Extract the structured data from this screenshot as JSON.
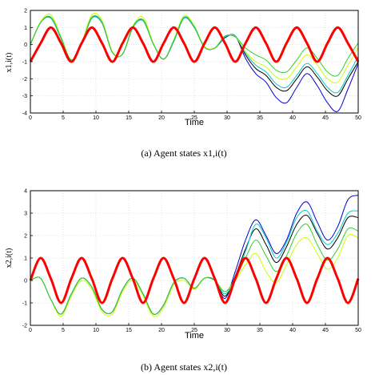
{
  "chart_data": [
    {
      "type": "line",
      "xlabel": "Time",
      "ylabel": "x1,i(t)",
      "xlim": [
        0,
        50
      ],
      "ylim": [
        -4,
        2
      ],
      "xticks": [
        "0",
        "5",
        "10",
        "15",
        "20",
        "25",
        "30",
        "35",
        "40",
        "45",
        "50"
      ],
      "yticks": [
        "-4",
        "-3",
        "-2",
        "-1",
        "0",
        "1",
        "2"
      ],
      "grid": true,
      "caption": "(a) Agent states x1,i(t)",
      "series": [
        {
          "color": "#ff0000",
          "role": "leader",
          "y": [
            -1.0,
            0.08,
            1.0,
            0.08,
            -1.0,
            0.08,
            1.0,
            0.08,
            -1.0,
            0.08,
            1.0,
            0.08,
            -1.0,
            0.08,
            1.0,
            0.08,
            -1.0,
            0.08,
            1.0,
            0.08,
            -1.0,
            0.08,
            1.0,
            0.08,
            -1.0,
            0.08,
            1.0,
            0.08,
            -1.0,
            0.08,
            1.0,
            0.08,
            -1.0
          ]
        },
        {
          "color": "#0000cc",
          "y": [
            0.0,
            1.3,
            1.6,
            0.35,
            -0.9,
            0.05,
            1.6,
            1.3,
            -0.45,
            -0.55,
            1.0,
            1.45,
            0.05,
            -0.85,
            0.2,
            1.6,
            1.05,
            -0.15,
            -0.2,
            0.4,
            0.5,
            -0.8,
            -1.7,
            -2.2,
            -3.1,
            -3.4,
            -2.5,
            -1.7,
            -2.4,
            -3.4,
            -3.9,
            -2.6,
            -1.1
          ]
        },
        {
          "color": "#000000",
          "y": [
            0.0,
            1.3,
            1.55,
            0.35,
            -0.9,
            0.05,
            1.55,
            1.25,
            -0.45,
            -0.55,
            1.0,
            1.4,
            0.05,
            -0.85,
            0.2,
            1.55,
            1.0,
            -0.15,
            -0.2,
            0.45,
            0.5,
            -0.6,
            -1.4,
            -1.8,
            -2.5,
            -2.7,
            -2.0,
            -1.3,
            -1.9,
            -2.7,
            -3.0,
            -2.0,
            -1.0
          ]
        },
        {
          "color": "#00cccc",
          "y": [
            0.0,
            1.3,
            1.55,
            0.35,
            -0.9,
            0.05,
            1.55,
            1.25,
            -0.45,
            -0.55,
            1.0,
            1.4,
            0.05,
            -0.85,
            0.2,
            1.55,
            1.0,
            -0.15,
            -0.2,
            0.45,
            0.5,
            -0.5,
            -1.2,
            -1.6,
            -2.3,
            -2.5,
            -1.8,
            -1.1,
            -1.7,
            -2.5,
            -2.8,
            -1.8,
            -0.7
          ]
        },
        {
          "color": "#ccff00",
          "y": [
            0.0,
            1.35,
            1.75,
            0.45,
            -0.9,
            0.1,
            1.75,
            1.4,
            -0.4,
            -0.55,
            1.1,
            1.6,
            0.1,
            -0.85,
            0.3,
            1.7,
            1.1,
            -0.1,
            -0.2,
            0.5,
            0.45,
            -0.4,
            -1.0,
            -1.3,
            -1.9,
            -2.0,
            -1.3,
            -0.6,
            -1.2,
            -2.0,
            -2.2,
            -1.2,
            -0.2
          ]
        },
        {
          "color": "#33cc33",
          "y": [
            0.0,
            1.3,
            1.6,
            0.4,
            -0.9,
            0.05,
            1.6,
            1.3,
            -0.45,
            -0.55,
            1.05,
            1.45,
            0.05,
            -0.85,
            0.25,
            1.6,
            1.05,
            -0.15,
            -0.2,
            0.5,
            0.45,
            -0.2,
            -0.6,
            -0.9,
            -1.5,
            -1.6,
            -0.9,
            -0.2,
            -0.8,
            -1.6,
            -1.8,
            -0.8,
            0.1
          ]
        }
      ]
    },
    {
      "type": "line",
      "xlabel": "Time",
      "ylabel": "x2,i(t)",
      "xlim": [
        0,
        50
      ],
      "ylim": [
        -2,
        4
      ],
      "xticks": [
        "0",
        "5",
        "10",
        "15",
        "20",
        "25",
        "30",
        "35",
        "40",
        "45",
        "50"
      ],
      "yticks": [
        "-2",
        "-1",
        "0",
        "1",
        "2",
        "3",
        "4"
      ],
      "grid": true,
      "caption": "(b) Agent states x2,i(t)",
      "series": [
        {
          "color": "#ff0000",
          "role": "leader",
          "y": [
            0.0,
            1.0,
            0.08,
            -1.0,
            0.08,
            1.0,
            0.08,
            -1.0,
            0.08,
            1.0,
            0.08,
            -1.0,
            0.08,
            1.0,
            0.08,
            -1.0,
            0.08,
            1.0,
            0.08,
            -1.0,
            0.08,
            1.0,
            0.08,
            -1.0,
            0.08,
            1.0,
            0.08,
            -1.0,
            0.08,
            1.0,
            0.08,
            -1.0,
            0.08
          ]
        },
        {
          "color": "#0000cc",
          "y": [
            0.0,
            0.1,
            -0.85,
            -1.5,
            -0.6,
            0.1,
            -0.3,
            -1.3,
            -1.4,
            -0.4,
            0.1,
            -0.6,
            -1.5,
            -1.1,
            -0.1,
            0.1,
            -0.35,
            0.1,
            0.0,
            -0.8,
            0.4,
            1.8,
            2.7,
            2.0,
            1.2,
            1.8,
            3.0,
            3.5,
            2.6,
            1.8,
            2.4,
            3.6,
            3.8
          ]
        },
        {
          "color": "#000000",
          "y": [
            0.0,
            0.1,
            -0.85,
            -1.5,
            -0.6,
            0.1,
            -0.3,
            -1.3,
            -1.4,
            -0.4,
            0.1,
            -0.6,
            -1.5,
            -1.1,
            -0.1,
            0.1,
            -0.35,
            0.1,
            0.0,
            -0.7,
            0.2,
            1.4,
            2.3,
            1.6,
            0.8,
            1.5,
            2.5,
            2.9,
            2.1,
            1.4,
            1.9,
            2.8,
            2.8
          ]
        },
        {
          "color": "#00cccc",
          "y": [
            0.0,
            0.1,
            -0.85,
            -1.5,
            -0.6,
            0.1,
            -0.3,
            -1.3,
            -1.4,
            -0.4,
            0.1,
            -0.6,
            -1.5,
            -1.1,
            -0.1,
            0.1,
            -0.35,
            0.1,
            0.0,
            -0.6,
            0.1,
            1.3,
            2.5,
            1.9,
            1.0,
            1.7,
            2.8,
            3.1,
            2.2,
            1.6,
            2.1,
            3.0,
            3.1
          ]
        },
        {
          "color": "#ccff00",
          "y": [
            0.0,
            0.1,
            -0.85,
            -1.6,
            -0.7,
            0.0,
            -0.4,
            -1.4,
            -1.5,
            -0.5,
            0.0,
            -0.7,
            -1.6,
            -1.2,
            -0.2,
            0.0,
            -0.4,
            0.1,
            0.0,
            -0.5,
            0.0,
            0.7,
            1.2,
            0.4,
            -0.1,
            0.7,
            1.6,
            1.9,
            1.2,
            0.5,
            1.0,
            2.0,
            1.9
          ]
        },
        {
          "color": "#33cc33",
          "y": [
            0.0,
            0.1,
            -0.85,
            -1.5,
            -0.6,
            0.1,
            -0.3,
            -1.3,
            -1.4,
            -0.4,
            0.1,
            -0.6,
            -1.5,
            -1.1,
            -0.1,
            0.1,
            -0.35,
            0.1,
            0.0,
            -0.5,
            0.1,
            1.0,
            1.8,
            1.1,
            0.4,
            1.1,
            2.1,
            2.5,
            1.6,
            0.9,
            1.4,
            2.3,
            2.2
          ]
        }
      ]
    }
  ]
}
